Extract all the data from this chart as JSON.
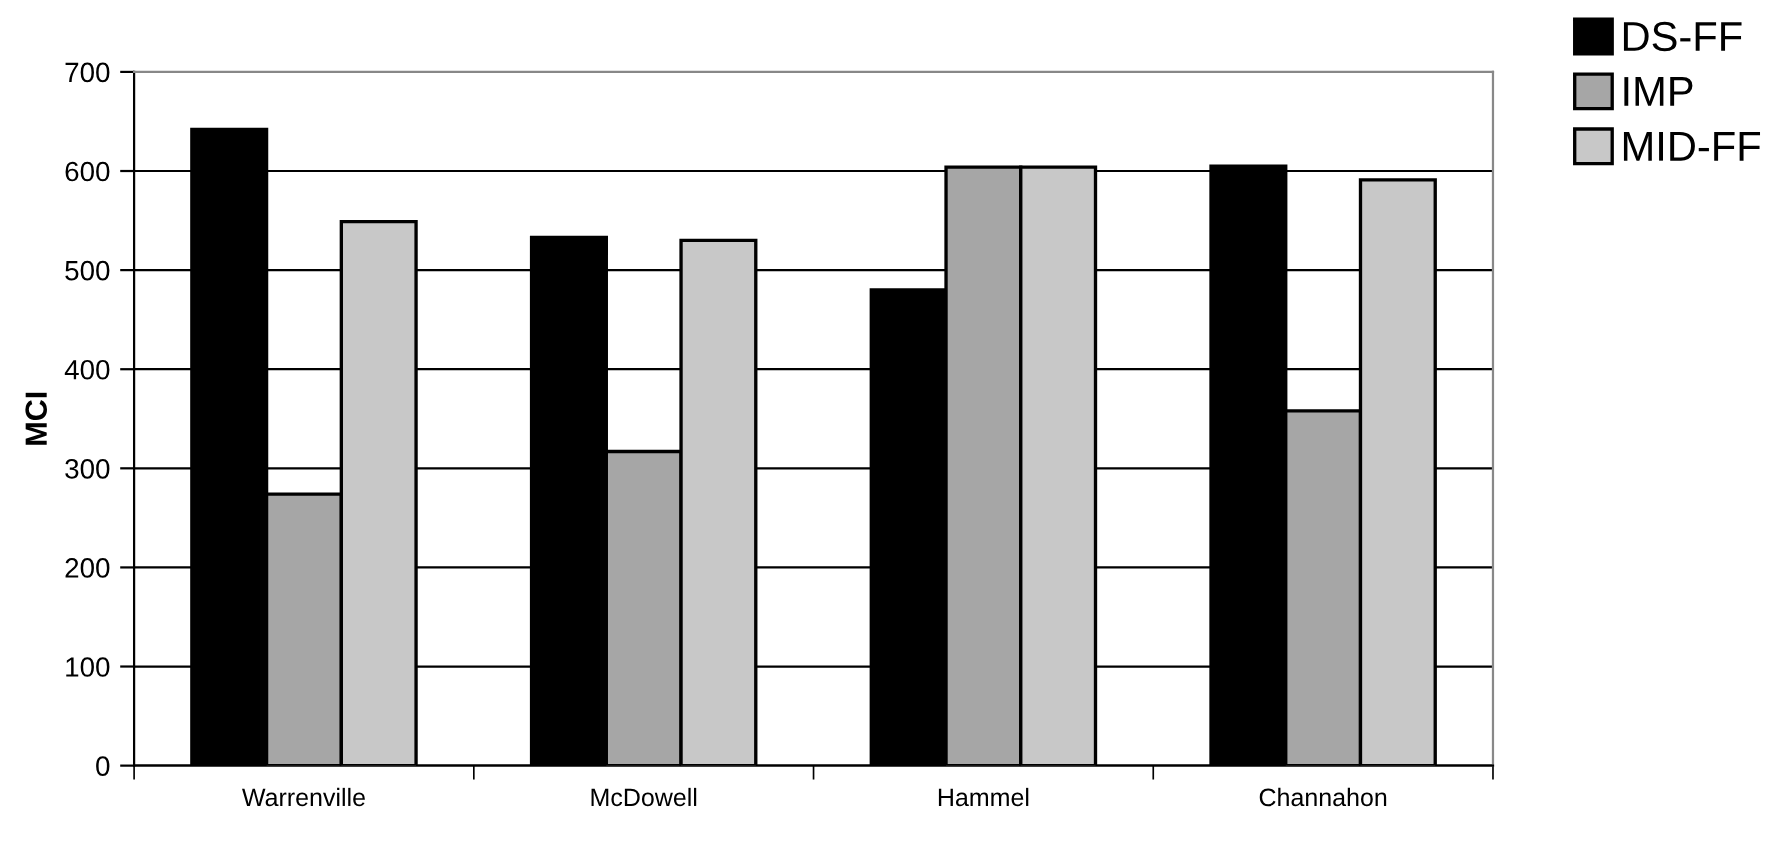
{
  "chart_data": {
    "type": "bar",
    "ylabel": "MCI",
    "categories": [
      "Warrenville",
      "McDowell",
      "Hammel",
      "Channahon"
    ],
    "series": [
      {
        "name": "DS-FF",
        "color": "#000000",
        "values": [
          642,
          533,
          480,
          605
        ]
      },
      {
        "name": "IMP",
        "color": "#a6a6a6",
        "values": [
          274,
          317,
          604,
          358
        ]
      },
      {
        "name": "MID-FF",
        "color": "#c8c8c8",
        "values": [
          549,
          530,
          604,
          591
        ]
      }
    ],
    "ylim": [
      0,
      700
    ],
    "yticks": [
      0,
      100,
      200,
      300,
      400,
      500,
      600,
      700
    ],
    "grid": "y",
    "legend": "top right"
  }
}
